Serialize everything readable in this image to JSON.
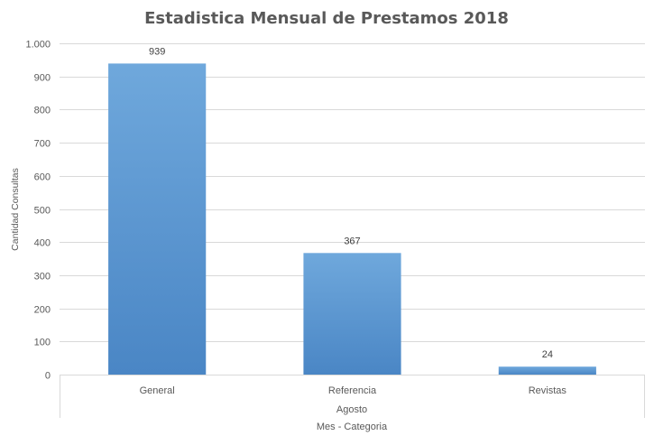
{
  "chart_data": {
    "type": "bar",
    "title": "Estadistica Mensual de Prestamos 2018",
    "xlabel": "Mes - Categoria",
    "ylabel": "Cantidad Consultas",
    "group_label": "Agosto",
    "categories": [
      "General",
      "Referencia",
      "Revistas"
    ],
    "values": [
      939,
      367,
      24
    ],
    "data_labels": [
      "939",
      "367",
      "24"
    ],
    "ylim": [
      0,
      1000
    ],
    "yticks": [
      0,
      100,
      200,
      300,
      400,
      500,
      600,
      700,
      800,
      900,
      1000
    ],
    "ytick_labels": [
      "0",
      "100",
      "200",
      "300",
      "400",
      "500",
      "600",
      "700",
      "800",
      "900",
      "1.000"
    ],
    "grid": true,
    "legend": "none",
    "bar_color": "#5b9bd5",
    "bar_color_light": "#6fa8dc",
    "bar_color_dark": "#4a86c5"
  }
}
